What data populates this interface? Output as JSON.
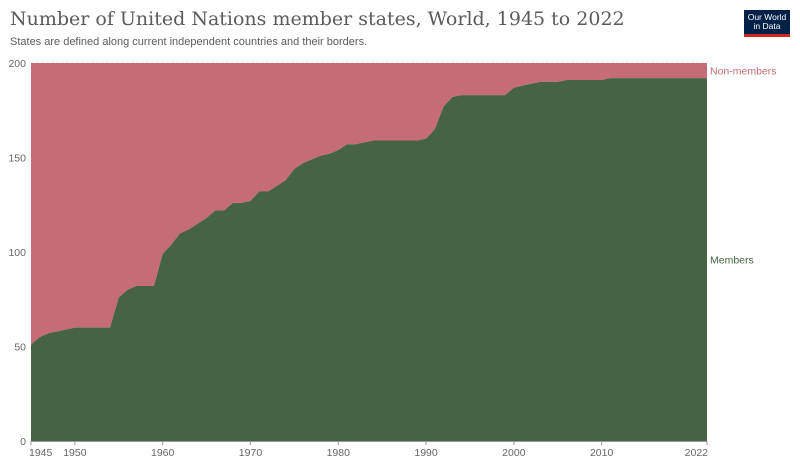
{
  "header": {
    "title": "Number of United Nations member states, World, 1945 to 2022",
    "subtitle": "States are defined along current independent countries and their borders.",
    "logo_line1": "Our World",
    "logo_line2": "in Data"
  },
  "colors": {
    "members": "#466443",
    "non_members": "#c66b78",
    "gridline": "#dddddd",
    "axis": "#999999",
    "text": "#5b5b5b",
    "logo_bg": "#002147",
    "logo_accent": "#ce261e"
  },
  "chart_data": {
    "type": "area",
    "stacked": true,
    "title": "Number of United Nations member states, World, 1945 to 2022",
    "subtitle": "States are defined along current independent countries and their borders.",
    "xlim": [
      1945,
      2022
    ],
    "ylim": [
      0,
      200
    ],
    "y_ticks": [
      0,
      50,
      100,
      150,
      200
    ],
    "x_ticks": [
      1945,
      1950,
      1960,
      1970,
      1980,
      1990,
      2000,
      2010,
      2022
    ],
    "grid": "horizontal dashed",
    "legend": "direct labels right",
    "x": [
      1945,
      1946,
      1947,
      1948,
      1949,
      1950,
      1951,
      1952,
      1953,
      1954,
      1955,
      1956,
      1957,
      1958,
      1959,
      1960,
      1961,
      1962,
      1963,
      1964,
      1965,
      1966,
      1967,
      1968,
      1969,
      1970,
      1971,
      1972,
      1973,
      1974,
      1975,
      1976,
      1977,
      1978,
      1979,
      1980,
      1981,
      1982,
      1983,
      1984,
      1985,
      1986,
      1987,
      1988,
      1989,
      1990,
      1991,
      1992,
      1993,
      1994,
      1995,
      1996,
      1997,
      1998,
      1999,
      2000,
      2001,
      2002,
      2003,
      2004,
      2005,
      2006,
      2007,
      2008,
      2009,
      2010,
      2011,
      2012,
      2013,
      2014,
      2015,
      2016,
      2017,
      2018,
      2019,
      2020,
      2021,
      2022
    ],
    "series": [
      {
        "name": "Members",
        "values": [
          51,
          55,
          57,
          58,
          59,
          60,
          60,
          60,
          60,
          60,
          76,
          80,
          82,
          82,
          82,
          99,
          104,
          110,
          112,
          115,
          118,
          122,
          122,
          126,
          126,
          127,
          132,
          132,
          135,
          138,
          144,
          147,
          149,
          151,
          152,
          154,
          157,
          157,
          158,
          159,
          159,
          159,
          159,
          159,
          159,
          160,
          165,
          177,
          182,
          183,
          183,
          183,
          183,
          183,
          183,
          187,
          188,
          189,
          190,
          190,
          190,
          191,
          191,
          191,
          191,
          191,
          192,
          192,
          192,
          192,
          192,
          192,
          192,
          192,
          192,
          192,
          192,
          192
        ]
      },
      {
        "name": "Non-members",
        "values": [
          149,
          145,
          143,
          142,
          141,
          140,
          140,
          140,
          140,
          140,
          124,
          120,
          118,
          118,
          118,
          101,
          96,
          90,
          88,
          85,
          82,
          78,
          78,
          74,
          74,
          73,
          68,
          68,
          65,
          62,
          56,
          53,
          51,
          49,
          48,
          46,
          43,
          43,
          42,
          41,
          41,
          41,
          41,
          41,
          41,
          40,
          35,
          23,
          18,
          17,
          17,
          17,
          17,
          17,
          17,
          13,
          12,
          11,
          10,
          10,
          10,
          9,
          9,
          9,
          9,
          9,
          8,
          8,
          8,
          8,
          8,
          8,
          8,
          8,
          8,
          8,
          8,
          8
        ]
      }
    ]
  }
}
